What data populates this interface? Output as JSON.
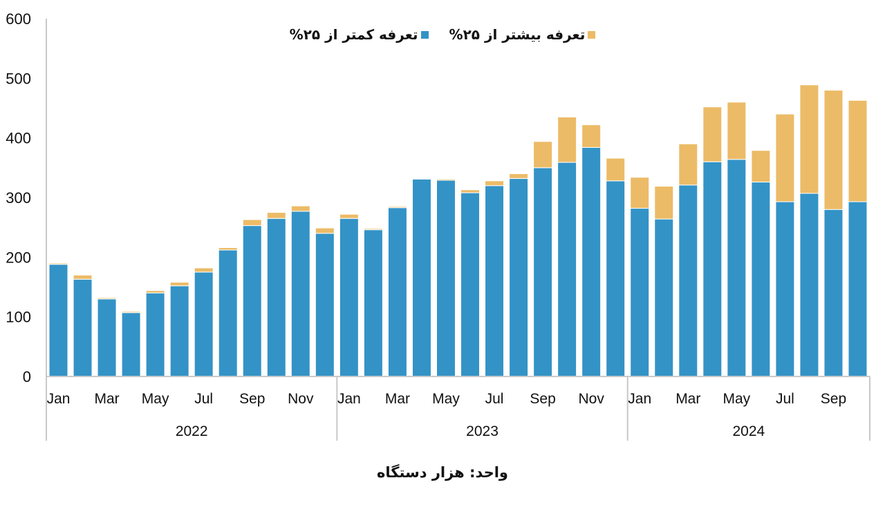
{
  "chart_data": {
    "type": "bar",
    "stacked": true,
    "title": "",
    "xlabel": "",
    "ylabel": "",
    "unit_note": "واحد: هزار دستگاه",
    "ylim": [
      0,
      600
    ],
    "yticks": [
      0,
      100,
      200,
      300,
      400,
      500,
      600
    ],
    "grid": false,
    "legend_position": "top",
    "years": [
      "2022",
      "2023",
      "2024"
    ],
    "months_per_year": [
      12,
      12,
      10
    ],
    "tick_labels": [
      [
        "Jan",
        "Mar",
        "May",
        "Jul",
        "Sep",
        "Nov"
      ],
      [
        "Jan",
        "Mar",
        "May",
        "Jul",
        "Sep",
        "Nov"
      ],
      [
        "Jan",
        "Mar",
        "May",
        "Jul",
        "Sep"
      ]
    ],
    "categories": [
      "2022-01",
      "2022-02",
      "2022-03",
      "2022-04",
      "2022-05",
      "2022-06",
      "2022-07",
      "2022-08",
      "2022-09",
      "2022-10",
      "2022-11",
      "2022-12",
      "2023-01",
      "2023-02",
      "2023-03",
      "2023-04",
      "2023-05",
      "2023-06",
      "2023-07",
      "2023-08",
      "2023-09",
      "2023-10",
      "2023-11",
      "2023-12",
      "2024-01",
      "2024-02",
      "2024-03",
      "2024-04",
      "2024-05",
      "2024-06",
      "2024-07",
      "2024-08",
      "2024-09",
      "2024-10"
    ],
    "series": [
      {
        "name": "تعرفه کمتر از ۲۵%",
        "color": "#3393c6",
        "values": [
          188,
          163,
          130,
          107,
          140,
          152,
          175,
          212,
          253,
          265,
          277,
          240,
          265,
          246,
          283,
          331,
          329,
          308,
          320,
          332,
          350,
          359,
          384,
          328,
          282,
          264,
          321,
          360,
          364,
          326,
          293,
          307,
          280,
          293
        ]
      },
      {
        "name": "تعرفه بیشتر از ۲۵%",
        "color": "#ecbb67",
        "values": [
          2,
          7,
          2,
          2,
          4,
          6,
          7,
          4,
          10,
          10,
          9,
          9,
          7,
          2,
          2,
          1,
          2,
          5,
          8,
          8,
          44,
          76,
          38,
          38,
          52,
          55,
          69,
          92,
          96,
          53,
          147,
          182,
          200,
          170
        ]
      }
    ]
  }
}
